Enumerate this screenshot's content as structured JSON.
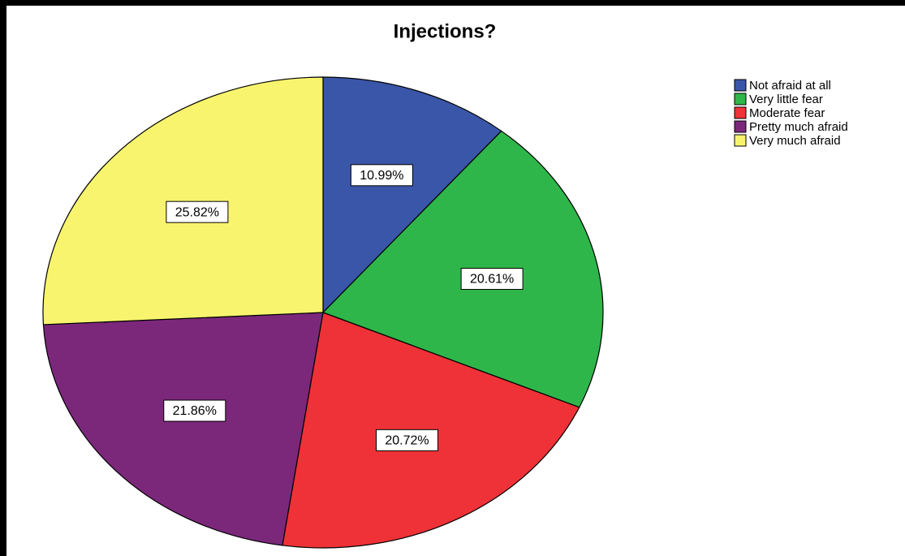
{
  "chart_data": {
    "type": "pie",
    "title": "Injections?",
    "categories": [
      "Not afraid at all",
      "Very little fear",
      "Moderate fear",
      "Pretty much afraid",
      "Very much afraid"
    ],
    "values": [
      10.99,
      20.61,
      20.72,
      21.86,
      25.82
    ],
    "value_labels": [
      "10.99%",
      "20.61%",
      "20.72%",
      "21.86%",
      "25.82%"
    ],
    "colors": [
      "#3a56a8",
      "#2fb64a",
      "#ee3237",
      "#7b287b",
      "#f8f46e"
    ],
    "legend": "top-right"
  }
}
